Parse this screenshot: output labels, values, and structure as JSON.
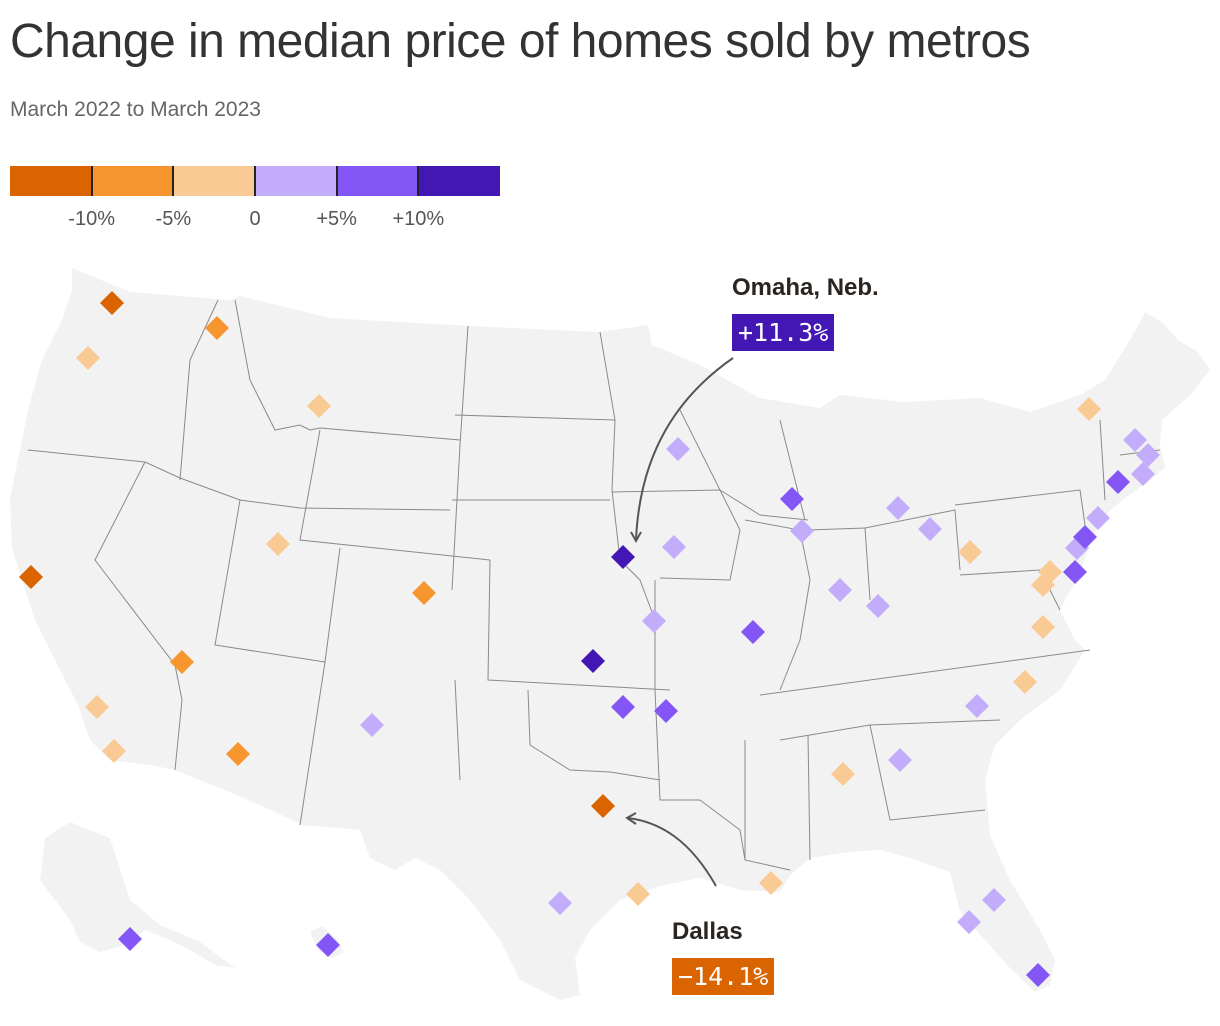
{
  "title": "Change in median price of homes sold by metros",
  "subtitle": "March 2022 to March 2023",
  "legend": {
    "colors": [
      "#d96400",
      "#f7962f",
      "#f9ca93",
      "#c3adfb",
      "#8456f6",
      "#4217b4"
    ],
    "bins": [
      "< -10%",
      "-10% to -5%",
      "-5% to 0",
      "0 to +5%",
      "+5% to +10%",
      "> +10%"
    ],
    "tick_labels": [
      "-10%",
      "-5%",
      "0",
      "+5%",
      "+10%"
    ]
  },
  "callouts": {
    "omaha": {
      "name": "Omaha, Neb.",
      "value": "+11.3%",
      "color": "#4217b4"
    },
    "dallas": {
      "name": "Dallas",
      "value": "−14.1%",
      "color": "#d96400"
    }
  },
  "chart_data": {
    "type": "map",
    "metric": "Change in median price of homes sold",
    "metros": [
      {
        "name": "Omaha, Neb.",
        "change": 11.3
      },
      {
        "name": "Dallas",
        "change": -14.1
      }
    ]
  }
}
